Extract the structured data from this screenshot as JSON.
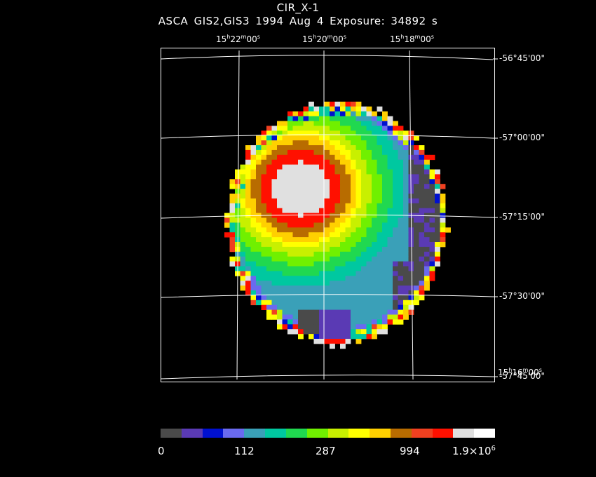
{
  "header": {
    "line1": "CIR_X-1",
    "line2": "ASCA GIS2,GIS3   1994 Aug  4    Exposure: 34892 s"
  },
  "ra_labels": [
    {
      "h": "15",
      "m": "22",
      "s": "00"
    },
    {
      "h": "15",
      "m": "20",
      "s": "00"
    },
    {
      "h": "15",
      "m": "18",
      "s": "00"
    },
    {
      "h": "15",
      "m": "16",
      "s": "00"
    }
  ],
  "dec_labels": [
    "-56°45'00\"",
    "-57°00'00\"",
    "-57°15'00\"",
    "-57°30'00\"",
    "-57°45'00\""
  ],
  "colorbar": {
    "colors": [
      "#4a4a4a",
      "#5a3ab4",
      "#0010d0",
      "#6a6af0",
      "#3aa0b8",
      "#00c8a0",
      "#20d850",
      "#70f000",
      "#c8f000",
      "#ffff00",
      "#ffd000",
      "#b86c00",
      "#f04020",
      "#ff1000",
      "#e0e0e0",
      "#ffffff"
    ],
    "tick_labels": [
      "0",
      "112",
      "287",
      "994"
    ],
    "max_label_mantissa": "1.9×10",
    "max_label_exponent": "6"
  },
  "image": {
    "source_center_counts": "1.9×10^6",
    "colormap_levels": 16
  }
}
